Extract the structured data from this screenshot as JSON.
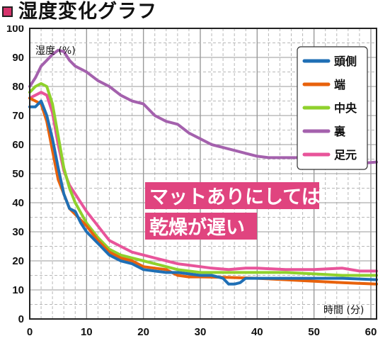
{
  "header": {
    "title": "湿度変化グラフ",
    "marker_color": "#d6336c"
  },
  "chart_data": {
    "type": "line",
    "title": "湿度変化グラフ",
    "ylabel": "湿度 (%)",
    "xlabel": "時間 (分)",
    "xlim": [
      0,
      61
    ],
    "ylim": [
      0,
      100
    ],
    "x_ticks": [
      0,
      10,
      20,
      30,
      40,
      50,
      60
    ],
    "y_ticks": [
      0,
      10,
      20,
      30,
      40,
      50,
      60,
      70,
      80,
      90,
      100
    ],
    "grid": true,
    "legend_position": "top-right",
    "annotation": {
      "lines": [
        "マットありにしては",
        "乾燥が遅い"
      ],
      "color": "#e0447f"
    },
    "series": [
      {
        "name": "頭側",
        "color": "#1f6fb5",
        "points": [
          [
            0,
            73
          ],
          [
            1,
            73
          ],
          [
            2,
            75
          ],
          [
            3,
            70
          ],
          [
            4,
            62
          ],
          [
            5,
            52
          ],
          [
            6,
            43
          ],
          [
            7,
            38
          ],
          [
            8,
            37
          ],
          [
            9,
            33
          ],
          [
            10,
            30
          ],
          [
            12,
            26
          ],
          [
            14,
            22
          ],
          [
            16,
            20
          ],
          [
            18,
            19
          ],
          [
            20,
            17
          ],
          [
            22,
            16.5
          ],
          [
            24,
            16
          ],
          [
            26,
            16
          ],
          [
            28,
            15.5
          ],
          [
            30,
            15
          ],
          [
            32,
            15
          ],
          [
            34,
            14
          ],
          [
            35,
            12
          ],
          [
            36,
            12
          ],
          [
            37,
            12.5
          ],
          [
            38,
            14
          ],
          [
            40,
            14
          ],
          [
            45,
            14
          ],
          [
            50,
            14
          ],
          [
            55,
            14
          ],
          [
            61,
            13.5
          ]
        ]
      },
      {
        "name": "端",
        "color": "#e8620c",
        "points": [
          [
            0,
            76
          ],
          [
            1,
            75
          ],
          [
            2,
            74
          ],
          [
            3,
            68
          ],
          [
            4,
            58
          ],
          [
            5,
            48
          ],
          [
            6,
            43
          ],
          [
            7,
            38
          ],
          [
            8,
            36
          ],
          [
            10,
            32
          ],
          [
            12,
            27
          ],
          [
            14,
            23
          ],
          [
            16,
            21
          ],
          [
            18,
            20
          ],
          [
            20,
            18
          ],
          [
            22,
            17.5
          ],
          [
            24,
            17
          ],
          [
            26,
            15
          ],
          [
            28,
            14.5
          ],
          [
            30,
            14.5
          ],
          [
            35,
            14.3
          ],
          [
            40,
            14
          ],
          [
            45,
            13.5
          ],
          [
            50,
            13
          ],
          [
            55,
            12.5
          ],
          [
            61,
            12
          ]
        ]
      },
      {
        "name": "中央",
        "color": "#8fd12c",
        "points": [
          [
            0,
            78
          ],
          [
            1,
            80
          ],
          [
            2,
            81
          ],
          [
            3,
            80
          ],
          [
            4,
            74
          ],
          [
            5,
            63
          ],
          [
            6,
            52
          ],
          [
            7,
            45
          ],
          [
            8,
            40
          ],
          [
            10,
            33
          ],
          [
            12,
            28
          ],
          [
            14,
            24
          ],
          [
            16,
            22
          ],
          [
            18,
            21
          ],
          [
            20,
            20
          ],
          [
            22,
            19
          ],
          [
            24,
            18
          ],
          [
            26,
            17
          ],
          [
            28,
            16.5
          ],
          [
            30,
            16
          ],
          [
            35,
            16
          ],
          [
            40,
            16
          ],
          [
            45,
            16
          ],
          [
            50,
            15.5
          ],
          [
            55,
            15
          ],
          [
            61,
            15
          ]
        ]
      },
      {
        "name": "裏",
        "color": "#a461ad",
        "points": [
          [
            0,
            80
          ],
          [
            1,
            83
          ],
          [
            2,
            87
          ],
          [
            3,
            89
          ],
          [
            4,
            91
          ],
          [
            5,
            92.5
          ],
          [
            6,
            92
          ],
          [
            7,
            89
          ],
          [
            8,
            87
          ],
          [
            10,
            85
          ],
          [
            12,
            82
          ],
          [
            14,
            80
          ],
          [
            16,
            77
          ],
          [
            18,
            75
          ],
          [
            20,
            74
          ],
          [
            22,
            70
          ],
          [
            24,
            68
          ],
          [
            26,
            67
          ],
          [
            28,
            64
          ],
          [
            30,
            62
          ],
          [
            32,
            60
          ],
          [
            34,
            59
          ],
          [
            36,
            58
          ],
          [
            38,
            57
          ],
          [
            40,
            56
          ],
          [
            42,
            55.5
          ],
          [
            45,
            55.5
          ],
          [
            48,
            55.5
          ],
          [
            51,
            56
          ],
          [
            52,
            53.5
          ],
          [
            55,
            53.5
          ],
          [
            58,
            53.5
          ],
          [
            61,
            54
          ]
        ]
      },
      {
        "name": "足元",
        "color": "#e8549a",
        "points": [
          [
            0,
            76
          ],
          [
            1,
            77
          ],
          [
            2,
            78
          ],
          [
            3,
            77
          ],
          [
            4,
            71
          ],
          [
            5,
            60
          ],
          [
            6,
            51
          ],
          [
            7,
            46
          ],
          [
            8,
            43
          ],
          [
            10,
            37
          ],
          [
            12,
            32
          ],
          [
            14,
            27
          ],
          [
            16,
            25
          ],
          [
            18,
            23
          ],
          [
            20,
            22
          ],
          [
            22,
            21
          ],
          [
            24,
            20
          ],
          [
            26,
            19
          ],
          [
            28,
            18.5
          ],
          [
            30,
            18
          ],
          [
            32,
            17.5
          ],
          [
            35,
            17
          ],
          [
            38,
            17.5
          ],
          [
            40,
            17.5
          ],
          [
            45,
            17
          ],
          [
            50,
            17
          ],
          [
            55,
            17.5
          ],
          [
            58,
            16.5
          ],
          [
            61,
            16.5
          ]
        ]
      }
    ]
  }
}
